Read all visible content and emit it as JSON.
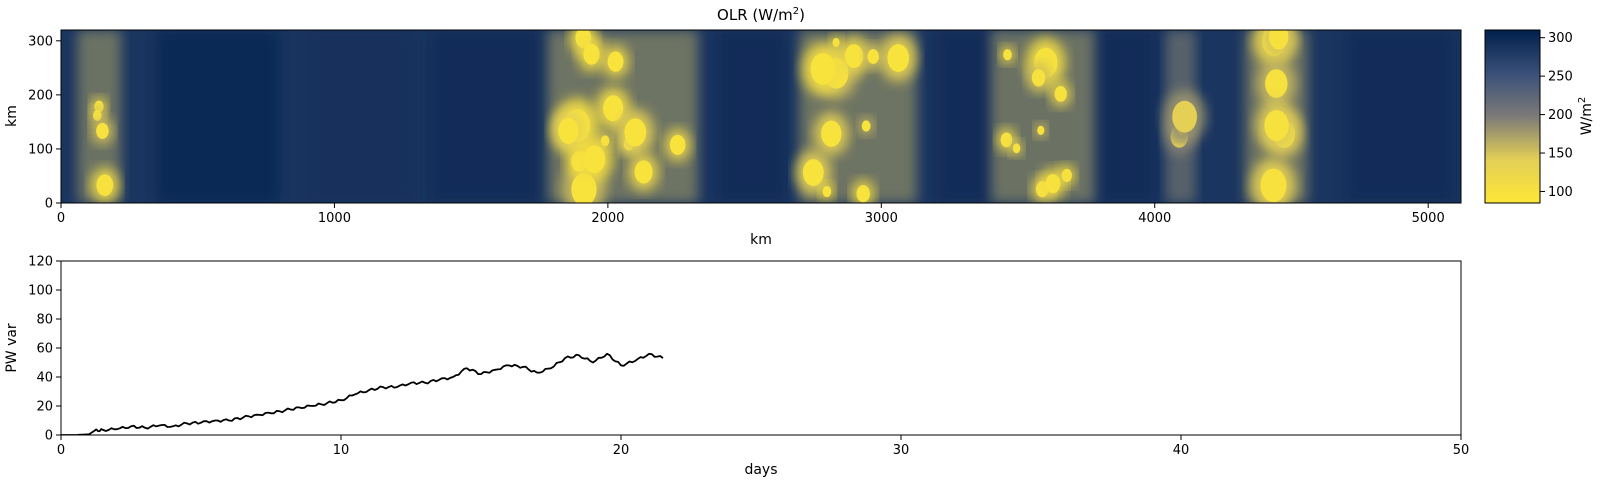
{
  "chart_data": [
    {
      "type": "heatmap",
      "title": "OLR (W/m²)",
      "xlabel": "km",
      "ylabel": "km",
      "xlim": [
        0,
        5120
      ],
      "ylim": [
        0,
        320
      ],
      "xticks": [
        0,
        1000,
        2000,
        3000,
        4000,
        5000
      ],
      "yticks": [
        0,
        100,
        200,
        300
      ],
      "colormap": "cividis (reversed)",
      "colorbar": {
        "label": "W/m²",
        "range": [
          85,
          310
        ],
        "ticks": [
          100,
          150,
          200,
          250,
          300
        ],
        "low_color": "#fde737",
        "mid_color": "#7c7b78",
        "high_color": "#00204c"
      },
      "background_olr": 285,
      "convective_bands_km": [
        {
          "x_range": [
            60,
            220
          ],
          "min_olr": 100
        },
        {
          "x_range": [
            1780,
            2330
          ],
          "min_olr": 95
        },
        {
          "x_range": [
            2700,
            3130
          ],
          "min_olr": 95
        },
        {
          "x_range": [
            3400,
            3780
          ],
          "min_olr": 100
        },
        {
          "x_range": [
            4040,
            4150
          ],
          "min_olr": 140
        },
        {
          "x_range": [
            4330,
            4560
          ],
          "min_olr": 100
        }
      ]
    },
    {
      "type": "line",
      "xlabel": "days",
      "ylabel": "PW var",
      "xlim": [
        0,
        50
      ],
      "ylim": [
        0,
        120
      ],
      "xticks": [
        0,
        10,
        20,
        30,
        40,
        50
      ],
      "yticks": [
        0,
        20,
        40,
        60,
        80,
        100,
        120
      ],
      "line_color": "#000000",
      "series": [
        {
          "x": [
            0,
            0.5,
            1.0,
            1.2,
            1.5,
            2.0,
            2.5,
            3.0,
            3.5,
            4.0,
            4.5,
            5.0,
            5.5,
            6.0,
            6.5,
            7.0,
            7.5,
            8.0,
            8.5,
            9.0,
            9.5,
            10.0,
            10.5,
            11.0,
            11.5,
            12.0,
            12.5,
            13.0,
            13.5,
            14.0,
            14.5,
            15.0,
            15.5,
            16.0,
            16.5,
            17.0,
            17.5,
            18.0,
            18.5,
            19.0,
            19.5,
            20.0,
            20.5,
            21.0,
            21.5
          ],
          "y": [
            0,
            0,
            0.5,
            3,
            3.5,
            4,
            6,
            5,
            6.5,
            6,
            8,
            8.5,
            10,
            10,
            12,
            14,
            15,
            17,
            19,
            20,
            22,
            24,
            28,
            31,
            33,
            33,
            36,
            36,
            38,
            40,
            46,
            42,
            45,
            48,
            47,
            43,
            46,
            53,
            55,
            50,
            56,
            48,
            51,
            56,
            53
          ]
        }
      ]
    }
  ]
}
